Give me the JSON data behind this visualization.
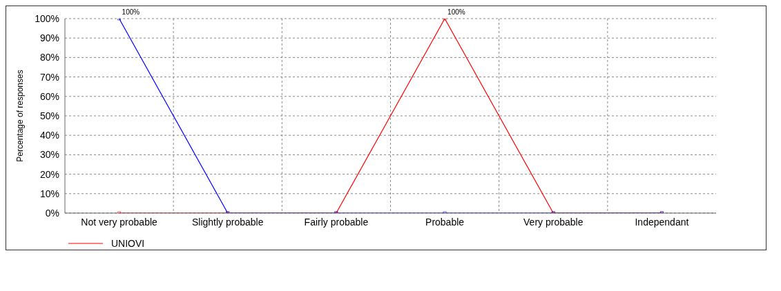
{
  "chart_data": {
    "type": "line",
    "ylabel": "Percentage of responses",
    "categories": [
      "Not very probable",
      "Slightly probable",
      "Fairly probable",
      "Probable",
      "Very probable",
      "Independant"
    ],
    "series": [
      {
        "name": "UNIOVI",
        "color": "#ff0000",
        "values": [
          0,
          0,
          0,
          100,
          0,
          0
        ],
        "value_labels": [
          null,
          null,
          null,
          "100%",
          null,
          null
        ]
      },
      {
        "color": "#0000ff",
        "values": [
          100,
          0,
          0,
          0,
          0,
          0
        ],
        "value_labels": [
          "100%",
          null,
          null,
          null,
          null,
          null
        ]
      }
    ],
    "ylim": [
      0,
      100
    ],
    "yticks": [
      {
        "value": 0,
        "label": "0%"
      },
      {
        "value": 10,
        "label": "10%"
      },
      {
        "value": 20,
        "label": "20%"
      },
      {
        "value": 30,
        "label": "30%"
      },
      {
        "value": 40,
        "label": "40%"
      },
      {
        "value": 50,
        "label": "50%"
      },
      {
        "value": 60,
        "label": "60%"
      },
      {
        "value": 70,
        "label": "70%"
      },
      {
        "value": 80,
        "label": "80%"
      },
      {
        "value": 90,
        "label": "90%"
      },
      {
        "value": 100,
        "label": "100%"
      }
    ],
    "grid": true,
    "legend": "bottom left",
    "marker": "square",
    "line_style": "solid"
  }
}
